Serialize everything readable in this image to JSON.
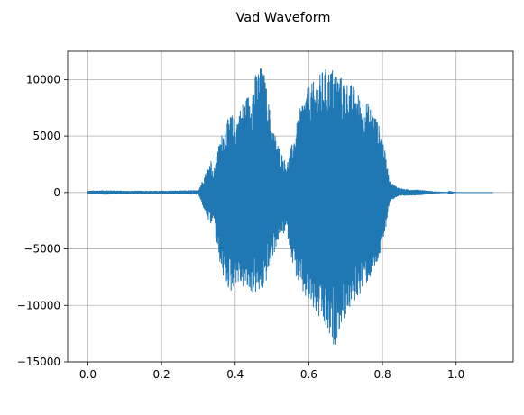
{
  "chart_data": {
    "type": "line",
    "title": "Vad Waveform",
    "xlabel": "",
    "ylabel": "",
    "xlim": [
      -0.055,
      1.155
    ],
    "ylim": [
      -15000,
      12500
    ],
    "x_ticks": [
      0.0,
      0.2,
      0.4,
      0.6,
      0.8,
      1.0
    ],
    "x_tick_labels": [
      "0.0",
      "0.2",
      "0.4",
      "0.6",
      "0.8",
      "1.0"
    ],
    "y_ticks": [
      10000,
      5000,
      0,
      -5000,
      -10000,
      -15000
    ],
    "y_tick_labels": [
      "10000",
      "5000",
      "0",
      "−5000",
      "−10000",
      "−15000"
    ],
    "grid": true,
    "legend": "none",
    "series": [
      {
        "color": "#1f77b4",
        "note_x_unit": "seconds",
        "envelope_x": [
          0.0,
          0.05,
          0.1,
          0.2,
          0.3,
          0.335,
          0.34,
          0.35,
          0.37,
          0.39,
          0.4,
          0.42,
          0.44,
          0.46,
          0.47,
          0.48,
          0.5,
          0.52,
          0.54,
          0.56,
          0.58,
          0.6,
          0.62,
          0.64,
          0.66,
          0.67,
          0.68,
          0.7,
          0.72,
          0.74,
          0.76,
          0.78,
          0.8,
          0.82,
          0.84,
          0.86,
          0.9,
          0.94,
          1.0,
          1.1
        ],
        "envelope_upper": [
          150,
          200,
          150,
          150,
          200,
          3000,
          1500,
          3500,
          6000,
          7000,
          6500,
          8000,
          9000,
          11000,
          11200,
          10500,
          6000,
          4000,
          2500,
          5000,
          8000,
          9500,
          10000,
          11000,
          11000,
          11200,
          10500,
          10000,
          9500,
          8500,
          8000,
          7000,
          5000,
          1000,
          500,
          300,
          250,
          100,
          0,
          0
        ],
        "envelope_lower": [
          -150,
          -200,
          -150,
          -150,
          -200,
          -3200,
          -2000,
          -5000,
          -8000,
          -9000,
          -8000,
          -8500,
          -9000,
          -9000,
          -9200,
          -8500,
          -6000,
          -4000,
          -3500,
          -7000,
          -9000,
          -10000,
          -11000,
          -12000,
          -13500,
          -13700,
          -12500,
          -11000,
          -10000,
          -9000,
          -8000,
          -7000,
          -5000,
          -800,
          -400,
          -300,
          -250,
          -100,
          0,
          0
        ]
      }
    ]
  }
}
